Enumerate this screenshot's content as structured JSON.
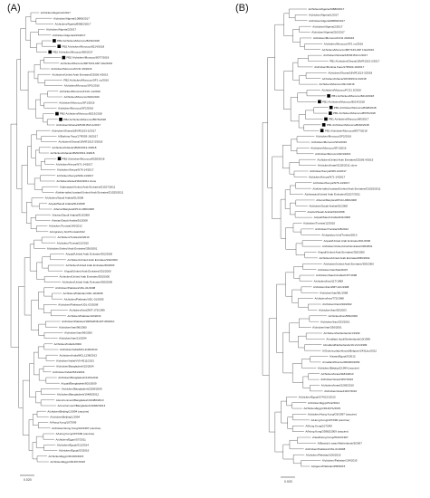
{
  "panels": [
    {
      "id": "A",
      "title": "(A)",
      "scale_label": "0.020",
      "leaves": [
        {
          "label": "A/chicken/Algeria/1/2017",
          "marked": false
        },
        {
          "label": "A/chicken/Algeria/10880/2017",
          "marked": false
        },
        {
          "label": "A/chicken/Algeria/89682/2017",
          "marked": false
        },
        {
          "label": "A/chicken/Algeria/2/2017",
          "marked": false
        },
        {
          "label": "A/chicken/Algeria/210/2017",
          "marked": false
        },
        {
          "label": "PB2 A/chicken/Morocco/8232/2018",
          "marked": true
        },
        {
          "label": "PB2 A/chicken/Morocco/8214/2018",
          "marked": true
        },
        {
          "label": "PB2 A/chicken/Morocco/M5/2017",
          "marked": true
        },
        {
          "label": "PB2 A/chicken/Morocco/8077/2018",
          "marked": true
        },
        {
          "label": "A/chicken/Morocco/MP7163-04P 10w/2016",
          "marked": false
        },
        {
          "label": "A/chicken/Morocco/FC31 29/2016",
          "marked": false
        },
        {
          "label": "A/chicken/United Arab Emirates/D2506.4/2015",
          "marked": false
        },
        {
          "label": "PB2 A/chicken/Morocco/SF1 no/2016",
          "marked": false
        },
        {
          "label": "A/chicken/Morocco/SF1/2016",
          "marked": false
        },
        {
          "label": "A/chicken/Morocco/FC31 no/2016",
          "marked": false
        },
        {
          "label": "A/chicken/Morocco/SF4/2016",
          "marked": false
        },
        {
          "label": "A/chicken/Morocco/SF1/2016",
          "marked": false
        },
        {
          "label": "A/chicken/Morocco/SF2/2016",
          "marked": false
        },
        {
          "label": "PB2 A/chicken/Morocco/8213/2018",
          "marked": true
        },
        {
          "label": "PB2 A/chicken/Morocco/8576/2018",
          "marked": true
        },
        {
          "label": "A/chicken/Ghana/18VIR1513-1/2017",
          "marked": false
        },
        {
          "label": "A/chicken/Ghana/18VIR1513-2/2017",
          "marked": false
        },
        {
          "label": "A/Burkina Faso/17RS93-19/2017",
          "marked": false
        },
        {
          "label": "A/chicken/Ghana/18VIR1513-3/2018",
          "marked": false
        },
        {
          "label": "A/chicken/Ghana/18VIR1513-3/2018",
          "marked": false
        },
        {
          "label": "A/chicken/Ghana/18VIR1513-3/2018",
          "marked": false
        },
        {
          "label": "PB2 A/chicken/Morocco/8328/2018",
          "marked": true
        },
        {
          "label": "A/chicken/Kenya/N71-14/2017",
          "marked": false
        },
        {
          "label": "A/chicken/Kenya/N76-14/2017",
          "marked": false
        },
        {
          "label": "A/chicken/Kenya/N69-14/2017",
          "marked": false
        },
        {
          "label": "A/chicken/Israel/1102/2011 clone",
          "marked": false
        },
        {
          "label": "A/pheasant/United Arab Emirates/D1527/2011",
          "marked": false
        },
        {
          "label": "A/white-tailed bustard/United Arab Emirates/D1525/2011",
          "marked": false
        },
        {
          "label": "A/chicken/Saudi Arabia/91/2008",
          "marked": false
        },
        {
          "label": "A/quail/Saudi Arabia/911/2008",
          "marked": false
        },
        {
          "label": "A/ferret/Maryland/P10-UMD/2008",
          "marked": false
        },
        {
          "label": "A/avian/Saudi Arabia/910/2008",
          "marked": false
        },
        {
          "label": "A/avian/Saudi Arabia/91/2008",
          "marked": false
        },
        {
          "label": "A/chicken/Tunisia/145/2012",
          "marked": false
        },
        {
          "label": "A/migratory bird/Tunisia/2012",
          "marked": false
        },
        {
          "label": "A/chicken/Tunisia/12/2010",
          "marked": false
        },
        {
          "label": "A/chicken/Tunisia/12/2010",
          "marked": false
        },
        {
          "label": "A/chicken/United Arab Emirates/336/2001",
          "marked": false
        },
        {
          "label": "A/quail/United Arab Emirates/302/2000",
          "marked": false
        },
        {
          "label": "A/chicken/United Arab Emirates/302/2002",
          "marked": false
        },
        {
          "label": "A/chicken/United Arab Emirates/46/2003",
          "marked": false
        },
        {
          "label": "A/quail/United Arab Emirates/301/2000",
          "marked": false
        },
        {
          "label": "A/chicken/United Arab Emirates/303/2000",
          "marked": false
        },
        {
          "label": "A/chicken/United Arab Emirates/305/2000",
          "marked": false
        },
        {
          "label": "A/chicken/Pakistan/UDL-01/2008",
          "marked": false
        },
        {
          "label": "A/chicken/Pakistan/UDL-02/2008",
          "marked": false
        },
        {
          "label": "A/chicken/Pakistan/UDL-01/2005",
          "marked": false
        },
        {
          "label": "A/chicken/Pakistan/UDL-03/2008",
          "marked": false
        },
        {
          "label": "A/chicken/Iran/ZMT-173/1999",
          "marked": false
        },
        {
          "label": "A/chicken/Pakistan/10/2016",
          "marked": false
        },
        {
          "label": "A/chicken/Pakistan/19RS2038-26T-08/2010",
          "marked": false
        },
        {
          "label": "A/chicken/Iran/96/2000",
          "marked": false
        },
        {
          "label": "A/chicken/Iran/96/2000",
          "marked": false
        },
        {
          "label": "A/chicken/Iran/11/2004",
          "marked": false
        },
        {
          "label": "A/chicken/India/1/2004",
          "marked": false
        },
        {
          "label": "A/chicken/India/MCL1136/2013",
          "marked": false
        },
        {
          "label": "A/chicken/India/MCL1138/2013",
          "marked": false
        },
        {
          "label": "A/chicken/India/VV9-4511/2013",
          "marked": false
        },
        {
          "label": "A/chicken/Bangladesh/22/2004",
          "marked": false
        },
        {
          "label": "A/chicken/India/2544/2004",
          "marked": false
        },
        {
          "label": "A/chicken/Bangladesh/1151/2011",
          "marked": false
        },
        {
          "label": "A/quail/Bangladesh/801/2009",
          "marked": false
        },
        {
          "label": "A/chicken/Bangladesh/2208/2009",
          "marked": false
        },
        {
          "label": "A/chicken/Bangladesh/10480/2012",
          "marked": false
        },
        {
          "label": "A/environment/Bangladesh/10486/2013",
          "marked": false
        },
        {
          "label": "A/environment/Bangladesh/10482/2013",
          "marked": false
        },
        {
          "label": "A/chicken/Beijing/1/1994 (vaccine)",
          "marked": false
        },
        {
          "label": "A/chicken/Beijing/1/1994",
          "marked": false
        },
        {
          "label": "A/Hong Kong/1073/99",
          "marked": false
        },
        {
          "label": "A/chicken/Hong Kong/G9/1997 (vaccine)",
          "marked": false
        },
        {
          "label": "A/Hong Kong/1073/99 (vaccine)",
          "marked": false
        },
        {
          "label": "A/chicken/Egypt/S7/2011",
          "marked": false
        },
        {
          "label": "A/chicken/Egypt/S12/2014",
          "marked": false
        },
        {
          "label": "A/chicken/Egypt/S3/2016",
          "marked": false
        },
        {
          "label": "A/chicken/Egypt/D1466/2015",
          "marked": false
        },
        {
          "label": "A/chicken/Egypt/D1467/2015",
          "marked": false
        }
      ]
    },
    {
      "id": "B",
      "title": "(B)",
      "scale_label": "0.020",
      "leaves": [
        {
          "label": "A/chicken/Algeria/10880/2017",
          "marked": false
        },
        {
          "label": "A/chicken/Algeria/1/2017",
          "marked": false
        },
        {
          "label": "A/chicken/Algeria/89682/2017",
          "marked": false
        },
        {
          "label": "A/chicken/Algeria/2/2017",
          "marked": false
        },
        {
          "label": "A/chicken/Algeria/210/2017",
          "marked": false
        },
        {
          "label": "A/chicken/Morocco/FC31 29/2016",
          "marked": false
        },
        {
          "label": "A/chicken/Morocco/SF1 no/2016",
          "marked": false
        },
        {
          "label": "A/chicken/Morocco/MP7163-04P 10w/2016",
          "marked": false
        },
        {
          "label": "A/chicken/Ghana/18VIR1513-1/2017",
          "marked": false
        },
        {
          "label": "PB1 A/chicken/Ghana/18VIR1513-2/2017",
          "marked": false
        },
        {
          "label": "A/chicken/Burkina Faso/17RS93-19/2017",
          "marked": false
        },
        {
          "label": "A/chicken/Ghana/18VIR1513-3/2018",
          "marked": false
        },
        {
          "label": "A/chicken/Ghana/18VIR1513-3/2018",
          "marked": false
        },
        {
          "label": "A/chicken/Morocco/SF1/2016",
          "marked": false
        },
        {
          "label": "A/chicken/Morocco/FC31 2/2016",
          "marked": false
        },
        {
          "label": "PB1 A/chicken/Morocco/8213/2018",
          "marked": true
        },
        {
          "label": "PB1 A/chicken/Morocco/8214/2018",
          "marked": true
        },
        {
          "label": "PB1 A/chicken/Morocco/8328/2018",
          "marked": true
        },
        {
          "label": "PB1 A/chicken/Morocco/8576/2018",
          "marked": true
        },
        {
          "label": "PB1 A/chicken/Morocco/M5/2017",
          "marked": true
        },
        {
          "label": "PB1 A/chicken/Morocco/8232/2018",
          "marked": true
        },
        {
          "label": "PB1 A/chicken/Morocco/8077/2018",
          "marked": true
        },
        {
          "label": "A/chicken/Morocco/SF2/2016",
          "marked": false
        },
        {
          "label": "A/chicken/Morocco/SF4/2016",
          "marked": false
        },
        {
          "label": "A/chicken/Morocco/SF1/2016",
          "marked": false
        },
        {
          "label": "A/chicken/Morocco/SF3/2016",
          "marked": false
        },
        {
          "label": "A/chicken/United Arab Emirates/D2506.4/2015",
          "marked": false
        },
        {
          "label": "A/chicken/Israel/1102/2011 clone",
          "marked": false
        },
        {
          "label": "A/chicken/Kenya/N69-14/2017",
          "marked": false
        },
        {
          "label": "A/chicken/Kenya/N71-14/2017",
          "marked": false
        },
        {
          "label": "A/chicken/Kenya/N76-14/2017",
          "marked": false
        },
        {
          "label": "A/white-tailed bustard/United Arab Emirates/D1525/2011",
          "marked": false
        },
        {
          "label": "A/pheasant/United Arab Emirates/D1527/2011",
          "marked": false
        },
        {
          "label": "A/ferret/Maryland/P10-UMD/2008",
          "marked": false
        },
        {
          "label": "A/chicken/Saudi Arabia/91/2008",
          "marked": false
        },
        {
          "label": "A/avian/Saudi Arabia/910/2008",
          "marked": false
        },
        {
          "label": "A/quail/Saudi Arabia/911/2008",
          "marked": false
        },
        {
          "label": "A/chicken/Tunisia/12/2010",
          "marked": false
        },
        {
          "label": "A/chicken/Tunisia/145/2012",
          "marked": false
        },
        {
          "label": "A/migratory bird/Tunisia/2010",
          "marked": false
        },
        {
          "label": "A/quail/United Arab Emirates/301/2000",
          "marked": false
        },
        {
          "label": "A/chicken/United Arab Emirates/336/2001",
          "marked": false
        },
        {
          "label": "A/quail/United Arab Emirates/302/2000",
          "marked": false
        },
        {
          "label": "A/chicken/United Arab Emirates/R66/2002",
          "marked": false
        },
        {
          "label": "A/chicken/United Arab Emirates/303/2000",
          "marked": false
        },
        {
          "label": "A/chicken/Iran/SH2/2007",
          "marked": false
        },
        {
          "label": "A/chicken/Saudi Arabia/CP7/1998",
          "marked": false
        },
        {
          "label": "A/chicken/Iran/11T/1998",
          "marked": false
        },
        {
          "label": "A/chicken/Iran/ZMT-101/1998",
          "marked": false
        },
        {
          "label": "A/chicken/Iran/B1/1998",
          "marked": false
        },
        {
          "label": "A/chicken/Iran/772/1998",
          "marked": false
        },
        {
          "label": "A/chicken/Iran/294/2002",
          "marked": false
        },
        {
          "label": "A/chicken/Iran/92/2003",
          "marked": false
        },
        {
          "label": "A/chicken/Iran/584/2000",
          "marked": false
        },
        {
          "label": "A/chicken/Iran/233/2001",
          "marked": false
        },
        {
          "label": "A/chicken/Iran/336/2001",
          "marked": false
        },
        {
          "label": "A/chicken/Netherlands/1/1999",
          "marked": false
        },
        {
          "label": "A/mallard duck/Netherlands/10/1999",
          "marked": false
        },
        {
          "label": "A/mallard/Netherlands/10-Vmb/1999",
          "marked": false
        },
        {
          "label": "A/Guinea platyrhincus/Belgium/2431/pc/2012",
          "marked": false
        },
        {
          "label": "A/swan/Egypt/S/2012",
          "marked": false
        },
        {
          "label": "A/mallard/France/090360/2009",
          "marked": false
        },
        {
          "label": "A/chicken/Beijing/1/1994 (vaccine)",
          "marked": false
        },
        {
          "label": "A/chicken/Israel/1184/2010",
          "marked": false
        },
        {
          "label": "A/chicken/Israel/1157/2010",
          "marked": false
        },
        {
          "label": "A/chicken/Israel/1265/2010",
          "marked": false
        },
        {
          "label": "A/chicken/Israel/1167/2010",
          "marked": false
        },
        {
          "label": "A/chicken/Egypt/S7/NCC/2013",
          "marked": false
        },
        {
          "label": "A/chicken/Egypt/S12/2014",
          "marked": false
        },
        {
          "label": "A/chicken/Egypt/D1467A/2015",
          "marked": false
        },
        {
          "label": "A/chicken/Hong Kong/G9/1997 (vaccine)",
          "marked": false
        },
        {
          "label": "A/Hong Kong/1073/99 (vaccine)",
          "marked": false
        },
        {
          "label": "A/Hong Kong/1073/99",
          "marked": false
        },
        {
          "label": "A/Hong Kong/33982/2009 (vaccine)",
          "marked": false
        },
        {
          "label": "A/teal/Hong Kong/W312/1997",
          "marked": false
        },
        {
          "label": "A/Bewick's swan/Netherlands/5/2007",
          "marked": false
        },
        {
          "label": "A/chicken/Pakistan/UDL-01/2008",
          "marked": false
        },
        {
          "label": "A/chicken/Pakistan/106/2015",
          "marked": false
        },
        {
          "label": "A/chicken/Pakistan/134/2015",
          "marked": false
        },
        {
          "label": "A/pigeon/Pakistan/258/2015",
          "marked": false
        }
      ]
    }
  ]
}
